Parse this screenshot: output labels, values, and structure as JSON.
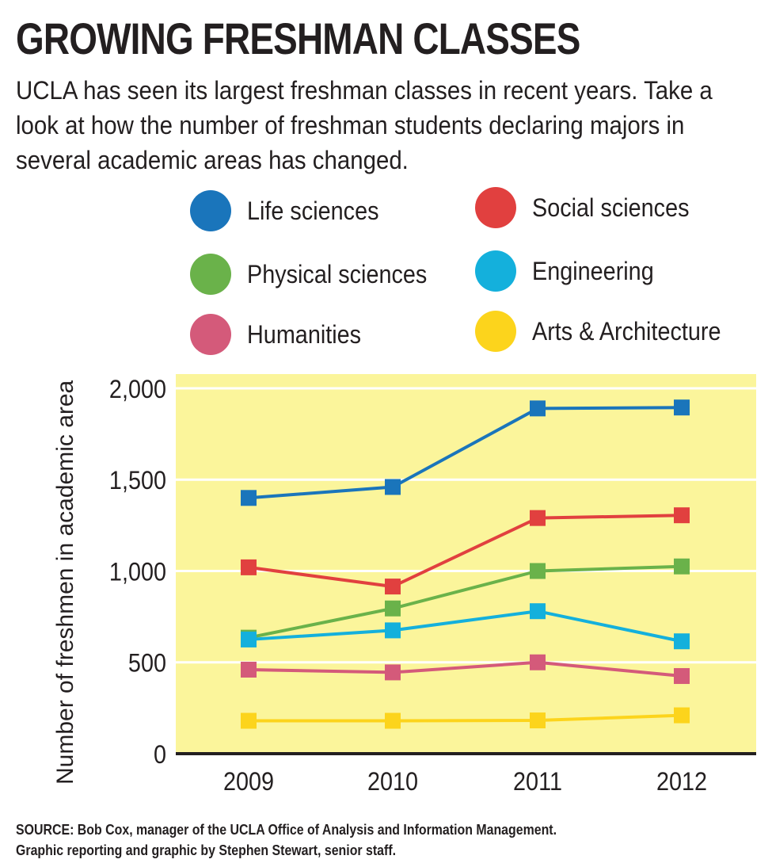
{
  "header": {
    "title": "GROWING FRESHMAN CLASSES",
    "subtitle": "UCLA has seen its largest freshman classes in recent years. Take a look at how the number of freshman students declaring majors in several academic areas  has changed."
  },
  "legend": [
    {
      "label": "Life sciences",
      "color": "#1a75bb"
    },
    {
      "label": "Social sciences",
      "color": "#e1403f"
    },
    {
      "label": "Physical sciences",
      "color": "#6ab24a"
    },
    {
      "label": "Engineering",
      "color": "#14b0dc"
    },
    {
      "label": "Humanities",
      "color": "#d45a7a"
    },
    {
      "label": "Arts & Architecture",
      "color": "#fcd41c"
    }
  ],
  "chart_data": {
    "type": "line",
    "title": "GROWING FRESHMAN CLASSES",
    "xlabel": "",
    "ylabel": "Number of freshmen in academic area",
    "categories": [
      "2009",
      "2010",
      "2011",
      "2012"
    ],
    "ylim": [
      0,
      2000
    ],
    "yticks": [
      0,
      500,
      1000,
      1500,
      2000
    ],
    "ytick_labels": [
      "0",
      "500",
      "1,000",
      "1,500",
      "2,000"
    ],
    "grid": true,
    "background": "#fbf59b",
    "series": [
      {
        "name": "Life sciences",
        "color": "#1a75bb",
        "values": [
          1400,
          1460,
          1890,
          1895
        ]
      },
      {
        "name": "Social sciences",
        "color": "#e1403f",
        "values": [
          1020,
          915,
          1290,
          1305
        ]
      },
      {
        "name": "Physical sciences",
        "color": "#6ab24a",
        "values": [
          635,
          795,
          1000,
          1025
        ]
      },
      {
        "name": "Engineering",
        "color": "#14b0dc",
        "values": [
          625,
          675,
          780,
          615
        ]
      },
      {
        "name": "Humanities",
        "color": "#d45a7a",
        "values": [
          460,
          445,
          500,
          425
        ]
      },
      {
        "name": "Arts & Architecture",
        "color": "#fcd41c",
        "values": [
          180,
          180,
          182,
          210
        ]
      }
    ]
  },
  "source": {
    "line1": "SOURCE: Bob Cox, manager of the UCLA Office of Analysis and Information Management.",
    "line2": "Graphic reporting and graphic by Stephen Stewart, senior staff."
  }
}
